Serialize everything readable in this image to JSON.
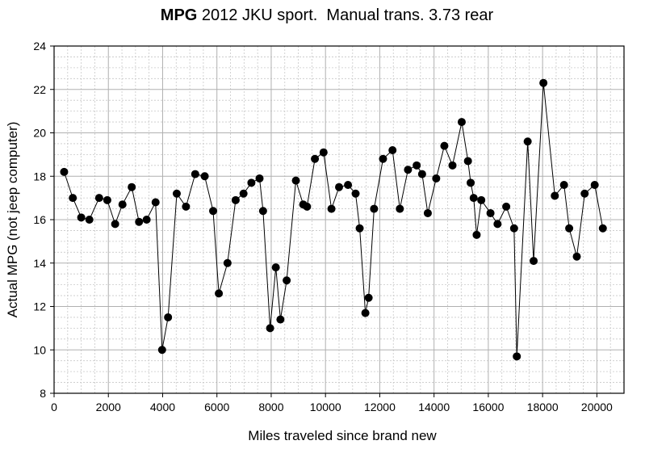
{
  "chart_data": {
    "type": "line",
    "title_bold": "MPG",
    "title_rest": " 2012 JKU sport.  Manual trans. 3.73 rear",
    "xlabel": "Miles traveled since brand new",
    "ylabel": "Actual MPG (not jeep computer)",
    "xlim": [
      0,
      21000
    ],
    "ylim": [
      8,
      24
    ],
    "xticks": [
      0,
      2000,
      4000,
      6000,
      8000,
      10000,
      12000,
      14000,
      16000,
      18000,
      20000
    ],
    "yticks": [
      8,
      10,
      12,
      14,
      16,
      18,
      20,
      22,
      24
    ],
    "grid": true,
    "series": [
      {
        "name": "MPG",
        "x": [
          370,
          690,
          1000,
          1300,
          1660,
          1960,
          2250,
          2520,
          2860,
          3130,
          3410,
          3740,
          3980,
          4200,
          4520,
          4860,
          5200,
          5550,
          5860,
          6070,
          6390,
          6690,
          6980,
          7270,
          7570,
          7700,
          7960,
          8170,
          8340,
          8570,
          8910,
          9180,
          9320,
          9610,
          9930,
          10220,
          10500,
          10830,
          11110,
          11260,
          11470,
          11590,
          11790,
          12120,
          12470,
          12740,
          13040,
          13360,
          13560,
          13770,
          14080,
          14380,
          14680,
          15020,
          15250,
          15350,
          15460,
          15570,
          15740,
          16080,
          16340,
          16660,
          16950,
          17050,
          17450,
          17670,
          18030,
          18450,
          18790,
          18980,
          19260,
          19550,
          19920,
          20220
        ],
        "y": [
          18.2,
          17.0,
          16.1,
          16.0,
          17.0,
          16.9,
          15.8,
          16.7,
          17.5,
          15.9,
          16.0,
          16.8,
          10.0,
          11.5,
          17.2,
          16.6,
          18.1,
          18.0,
          16.4,
          12.6,
          14.0,
          16.9,
          17.2,
          17.7,
          17.9,
          16.4,
          11.0,
          13.8,
          11.4,
          13.2,
          17.8,
          16.7,
          16.6,
          18.8,
          19.1,
          16.5,
          17.5,
          17.6,
          17.2,
          15.6,
          11.7,
          12.4,
          16.5,
          18.8,
          19.2,
          16.5,
          18.3,
          18.5,
          18.1,
          16.3,
          17.9,
          19.4,
          18.5,
          20.5,
          18.7,
          17.7,
          17.0,
          15.3,
          16.9,
          16.3,
          15.8,
          16.6,
          15.6,
          9.7,
          19.6,
          14.1,
          22.3,
          17.1,
          17.6,
          15.6,
          14.3,
          17.2,
          17.6,
          15.6
        ]
      }
    ]
  }
}
